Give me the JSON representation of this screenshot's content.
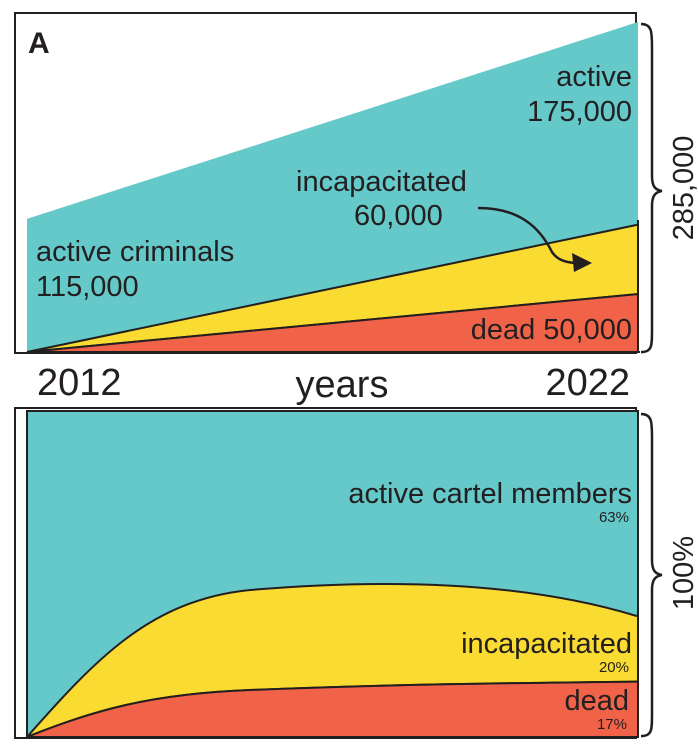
{
  "panel_label": "A",
  "colors": {
    "active": "#65c8c9",
    "incapacitated": "#f9db31",
    "dead": "#f16348",
    "frame": "#231f20"
  },
  "chart_data": [
    {
      "type": "area",
      "stacked": true,
      "x": [
        2012,
        2022
      ],
      "xlabel": "years",
      "x_tick_labels": [
        "2012",
        "2022"
      ],
      "total_label": "285,000",
      "series": [
        {
          "key": "dead",
          "values": [
            0,
            50000
          ]
        },
        {
          "key": "incapacitated",
          "values": [
            0,
            60000
          ]
        },
        {
          "key": "active",
          "values": [
            115000,
            175000
          ]
        }
      ],
      "ylim": [
        0,
        285000
      ],
      "annotations": {
        "start_active_name": "active criminals",
        "start_active_value": "115,000",
        "end_active_name": "active",
        "end_active_value": "175,000",
        "incapacitated_name": "incapacitated",
        "incapacitated_value": "60,000",
        "dead_text": "dead 50,000"
      }
    },
    {
      "type": "area",
      "stacked": true,
      "normalized": true,
      "total_label": "100%",
      "series": [
        {
          "key": "dead",
          "label": "dead",
          "end_percent": 17,
          "end_label": "17%"
        },
        {
          "key": "incapacitated",
          "label": "incapacitated",
          "end_percent": 20,
          "end_label": "20%"
        },
        {
          "key": "active",
          "label": "active cartel members",
          "end_percent": 63,
          "end_label": "63%"
        }
      ]
    }
  ]
}
